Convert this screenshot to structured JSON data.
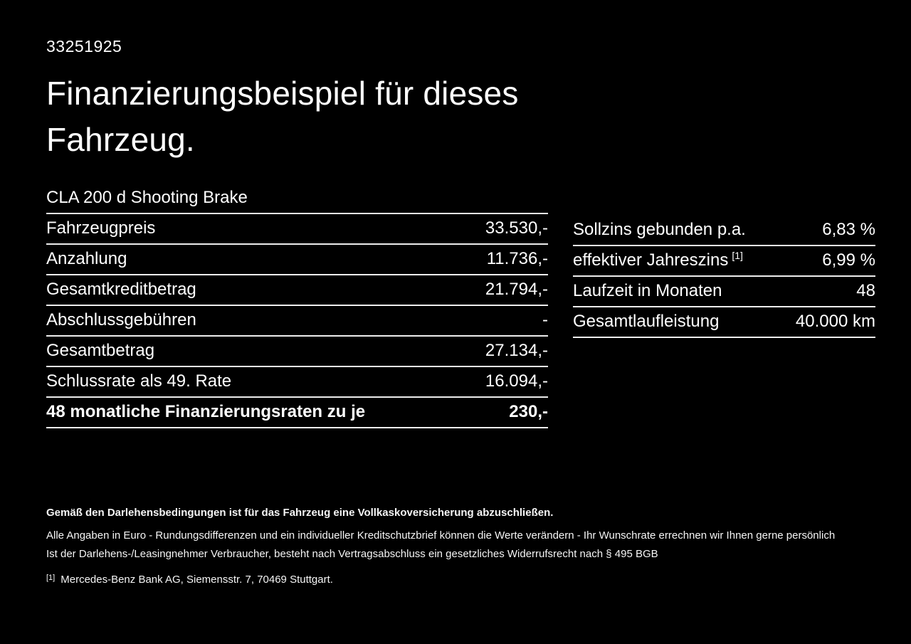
{
  "page": {
    "vehicle_id": "33251925",
    "title": "Finanzierungsbeispiel für dieses Fahrzeug.",
    "model": "CLA 200 d Shooting Brake"
  },
  "left_table": {
    "rows": [
      {
        "label": "Fahrzeugpreis",
        "value": "33.530,-"
      },
      {
        "label": "Anzahlung",
        "value": "11.736,-"
      },
      {
        "label": "Gesamtkreditbetrag",
        "value": "21.794,-"
      },
      {
        "label": "Abschlussgebühren",
        "value": "-"
      },
      {
        "label": "Gesamtbetrag",
        "value": "27.134,-"
      },
      {
        "label": "Schlussrate als 49. Rate",
        "value": "16.094,-"
      },
      {
        "label": "48 monatliche Finanzierungsraten zu je",
        "value": "230,-"
      }
    ]
  },
  "right_table": {
    "rows": [
      {
        "label": "Sollzins gebunden p.a.",
        "value": "6,83 %"
      },
      {
        "label": "effektiver Jahreszins",
        "superscript": "[1]",
        "value": "6,99 %"
      },
      {
        "label": "Laufzeit in Monaten",
        "value": "48"
      },
      {
        "label": "Gesamtlaufleistung",
        "value": "40.000 km"
      }
    ]
  },
  "footnotes": {
    "insurance_note": "Gemäß den Darlehensbedingungen ist für das Fahrzeug eine Vollkaskoversicherung abzuschließen.",
    "disclaimer_line1": "Alle Angaben in Euro - Rundungsdifferenzen und ein individueller Kreditschutzbrief können die Werte verändern - Ihr Wunschrate errechnen wir Ihnen gerne persönlich",
    "disclaimer_line2": "Ist der Darlehens-/Leasingnehmer Verbraucher, besteht nach Vertragsabschluss ein gesetzliches Widerrufsrecht nach § 495 BGB",
    "ref_marker": "[1]",
    "ref_text": "Mercedes-Benz Bank AG, Siemensstr. 7, 70469 Stuttgart."
  },
  "colors": {
    "background": "#000000",
    "text": "#ffffff",
    "divider": "#ededed"
  }
}
